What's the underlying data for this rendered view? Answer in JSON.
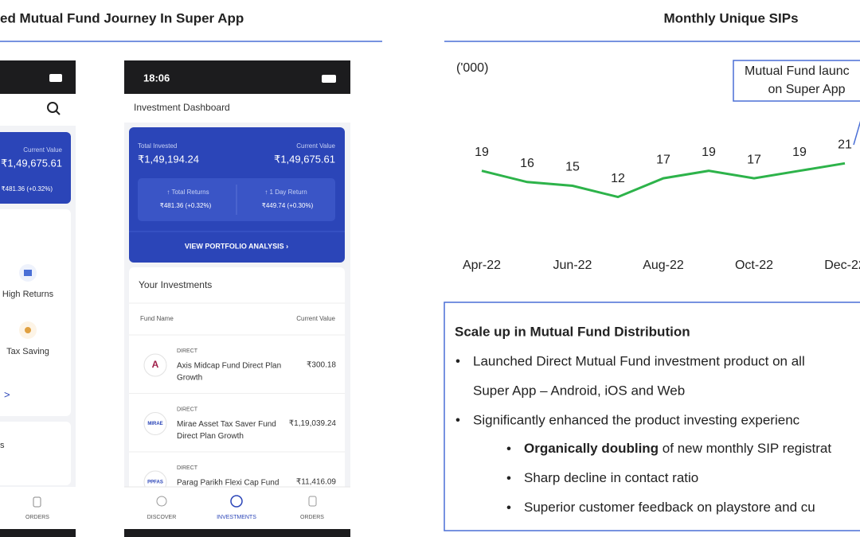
{
  "left_title": "ed Mutual Fund Journey In Super App",
  "phone_left": {
    "current_value_label": "Current Value",
    "current_value": "₹1,49,675.61",
    "returns": "₹481.36 (+0.32%)",
    "category_1": "High Returns",
    "category_2": "Tax Saving",
    "more": ">",
    "section": "s",
    "nav": "ORDERS"
  },
  "phone_right": {
    "time": "18:06",
    "header": "Investment Dashboard",
    "total_invested_label": "Total Invested",
    "total_invested": "₹1,49,194.24",
    "current_value_label": "Current Value",
    "current_value": "₹1,49,675.61",
    "total_returns_label": "↑ Total Returns",
    "total_returns": "₹481.36 (+0.32%)",
    "day_return_label": "↑ 1 Day Return",
    "day_return": "₹449.74 (+0.30%)",
    "cta": "VIEW PORTFOLIO ANALYSIS  ›",
    "investments_title": "Your Investments",
    "col_fund": "Fund Name",
    "col_value": "Current Value",
    "funds": [
      {
        "tag": "DIRECT",
        "line1": "Axis Midcap Fund Direct Plan",
        "line2": "Growth",
        "value": "₹300.18",
        "logo": "A"
      },
      {
        "tag": "DIRECT",
        "line1": "Mirae Asset Tax Saver Fund",
        "line2": "Direct Plan Growth",
        "value": "₹1,19,039.24",
        "logo": "MIRAE"
      },
      {
        "tag": "DIRECT",
        "line1": "Parag Parikh Flexi Cap Fund",
        "line2": "",
        "value": "₹11,416.09",
        "logo": "PPFAS"
      }
    ],
    "nav": [
      "DISCOVER",
      "INVESTMENTS",
      "ORDERS"
    ]
  },
  "chart_data": {
    "type": "line",
    "title": "Monthly Unique SIPs",
    "unit_label": "('000)",
    "categories": [
      "Apr-22",
      null,
      "Jun-22",
      null,
      "Aug-22",
      null,
      "Oct-22",
      null,
      "Dec-22"
    ],
    "series": [
      {
        "name": "Monthly Unique SIPs",
        "color": "#2db34a",
        "values": [
          19,
          16,
          15,
          12,
          17,
          19,
          17,
          19,
          21
        ]
      }
    ],
    "annotation": [
      "Mutual Fund launc",
      "on Super App"
    ]
  },
  "notes": {
    "heading": "Scale up in Mutual Fund Distribution",
    "bullets": [
      "Launched Direct Mutual Fund investment product on all",
      "Super App – Android, iOS and Web",
      "Significantly enhanced the product investing experienc"
    ],
    "sub_bullets": [
      {
        "bold": "Organically doubling",
        "text": " of new monthly SIP registrat"
      },
      {
        "bold": "",
        "text": "Sharp decline in contact ratio"
      },
      {
        "bold": "",
        "text": "Superior customer feedback on playstore and cu"
      }
    ]
  }
}
